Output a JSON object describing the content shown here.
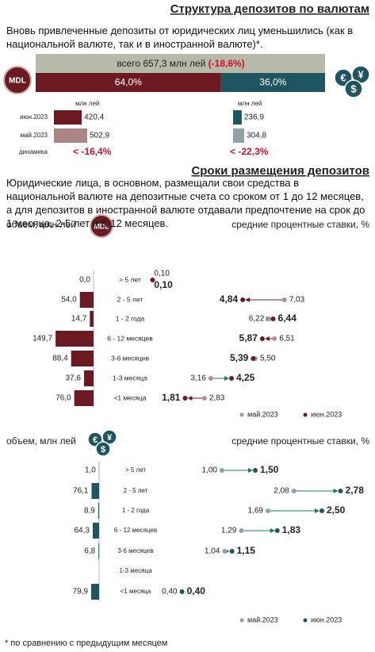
{
  "title": "Структура депозитов по валютам",
  "intro": "Вновь привлеченные депозиты от юридических лиц уменьшились (как в национальной валюте, так и в иностранной валюте)*.",
  "total": {
    "label": "всего 657,3 млн лей",
    "change": "(-18,6%)"
  },
  "mdl_icon": "MDL",
  "currency_icon": [
    "€",
    "¥",
    "$"
  ],
  "share": {
    "values": [
      64.0,
      36.0
    ],
    "value_labels": [
      "64,0%",
      "36,0%"
    ]
  },
  "units": "млн лей",
  "rows": [
    "июн.2023",
    "май.2023",
    "динамика"
  ],
  "mdl": {
    "values": [
      420.4,
      502.9
    ],
    "value_labels": [
      "420,4",
      "502,9"
    ],
    "change": "<  -16,4%"
  },
  "fx": {
    "values": [
      236.9,
      304.8
    ],
    "value_labels": [
      "236,9",
      "304,8"
    ],
    "change": "<  -22,3%"
  },
  "section2_title": "Сроки размещения депозитов",
  "section2_text": "Юридические лица, в основном, размещали свои средства в национальной валюте на депозитные счета со сроком от 1 до 12 месяцев, а для депозитов в иностранной валюте отдавали предпочтение на срок до 1 месяца, 2-5 лет и 6-12 месяцев.",
  "volume_label": "объем, млн лей",
  "rates_label": "средние процентные ставки, %",
  "terms": [
    "> 5 лет",
    "2 - 5 лет",
    "1 - 2 года",
    "6 - 12 месяцев",
    "3-6 месяцев",
    "1-3 месяца",
    "<1 месяца"
  ],
  "legend": [
    "май.2023",
    "июн.2023"
  ],
  "mdl_terms": {
    "volumes": [
      0.0,
      54.0,
      14.7,
      149.7,
      88.4,
      37.6,
      76.0
    ],
    "volume_labels": [
      "0,0",
      "54,0",
      "14,7",
      "149,7",
      "88,4",
      "37,6",
      "76,0"
    ],
    "rate_may": [
      0.1,
      7.03,
      6.22,
      6.51,
      5.5,
      3.16,
      2.83
    ],
    "rate_may_labels": [
      "0,10",
      "7,03",
      "6,22",
      "6,51",
      "5,50",
      "3,16",
      "2,83"
    ],
    "rate_jun": [
      0.1,
      4.84,
      6.44,
      5.87,
      5.39,
      4.25,
      1.81
    ],
    "rate_jun_labels": [
      "0,10",
      "4,84",
      "6,44",
      "5,87",
      "5,39",
      "4,25",
      "1,81"
    ]
  },
  "fx_terms": {
    "volumes": [
      1.0,
      76.1,
      8.9,
      64.3,
      6.8,
      null,
      79.9
    ],
    "volume_labels": [
      "1,0",
      "76,1",
      "8,9",
      "64,3",
      "6,8",
      null,
      "79,9"
    ],
    "rate_may": [
      1.0,
      2.08,
      1.69,
      1.29,
      1.04,
      null,
      0.4
    ],
    "rate_may_labels": [
      "1,00",
      "2,08",
      "1,69",
      "1,29",
      "1,04",
      null,
      "0,40"
    ],
    "rate_jun": [
      1.5,
      2.78,
      2.5,
      1.83,
      1.15,
      null,
      0.4
    ],
    "rate_jun_labels": [
      "1,50",
      "2,78",
      "2,50",
      "1,83",
      "1,15",
      null,
      "0,40"
    ]
  },
  "footnote": "* по сравнению с предыдущим месяцем"
}
